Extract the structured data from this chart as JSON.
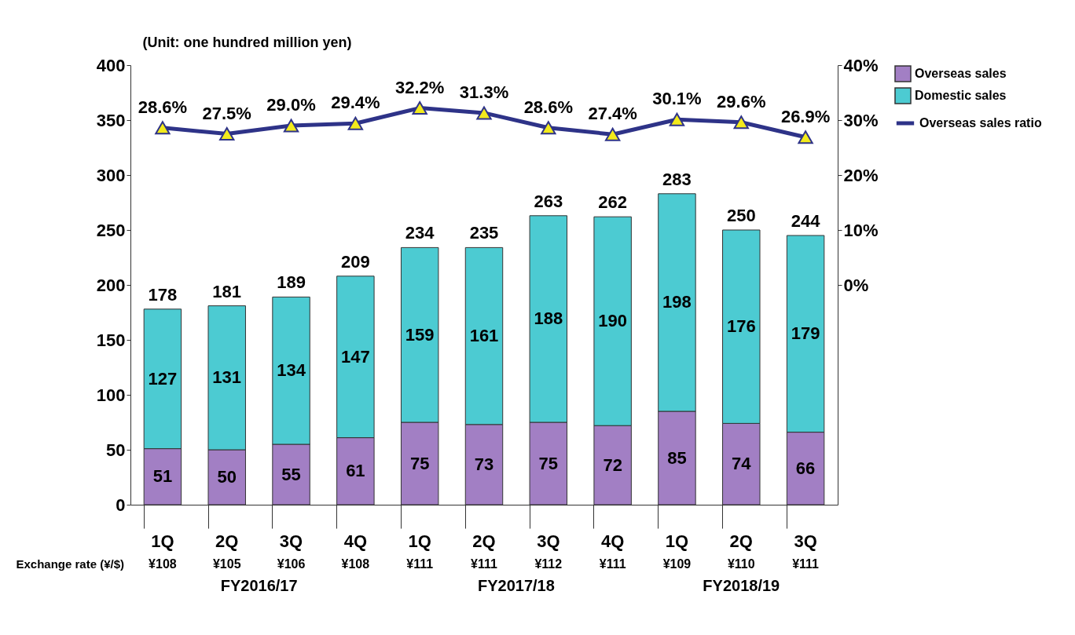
{
  "chart_data": {
    "type": "bar",
    "stacked": true,
    "ylabel": "(Unit: one hundred million yen)",
    "categories": [
      "1Q",
      "2Q",
      "3Q",
      "4Q",
      "1Q",
      "2Q",
      "3Q",
      "4Q",
      "1Q",
      "2Q",
      "3Q"
    ],
    "series": [
      {
        "name": "Overseas sales",
        "color": "#a27fc4",
        "values": [
          51,
          50,
          55,
          61,
          75,
          73,
          75,
          72,
          85,
          74,
          66
        ]
      },
      {
        "name": "Domestic sales",
        "color": "#4ccbd2",
        "values": [
          127,
          131,
          134,
          147,
          159,
          161,
          188,
          190,
          198,
          176,
          179
        ]
      },
      {
        "name": "Overseas sales ratio",
        "type": "line",
        "axis": "y2",
        "color": "#2e3388",
        "values": [
          28.6,
          27.5,
          29.0,
          29.4,
          32.2,
          31.3,
          28.6,
          27.4,
          30.1,
          29.6,
          26.9
        ],
        "value_labels": [
          "28.6%",
          "27.5%",
          "29.0%",
          "29.4%",
          "32.2%",
          "31.3%",
          "28.6%",
          "27.4%",
          "30.1%",
          "29.6%",
          "26.9%"
        ]
      }
    ],
    "totals": [
      "178",
      "181",
      "189",
      "209",
      "234",
      "235",
      "263",
      "262",
      "283",
      "250",
      "244"
    ],
    "data_labels": true,
    "ylim": [
      0,
      400
    ],
    "yticks": [
      0,
      50,
      100,
      150,
      200,
      250,
      300,
      350,
      400
    ],
    "y2lim": [
      -40,
      40
    ],
    "y2ticks": [
      {
        "value": 0,
        "label": "0%"
      },
      {
        "value": 10,
        "label": "10%"
      },
      {
        "value": 20,
        "label": "20%"
      },
      {
        "value": 30,
        "label": "30%"
      },
      {
        "value": 40,
        "label": "40%"
      }
    ],
    "marker": "triangle",
    "grid": false,
    "legend": "right",
    "annotations": [
      "Exchange rate (¥/$)",
      "¥108",
      "¥105",
      "¥106",
      "¥108",
      "¥111",
      "¥111",
      "¥112",
      "¥111",
      "¥109",
      "¥110",
      "¥111",
      "FY2016/17",
      "FY2017/18",
      "FY2018/19"
    ]
  }
}
